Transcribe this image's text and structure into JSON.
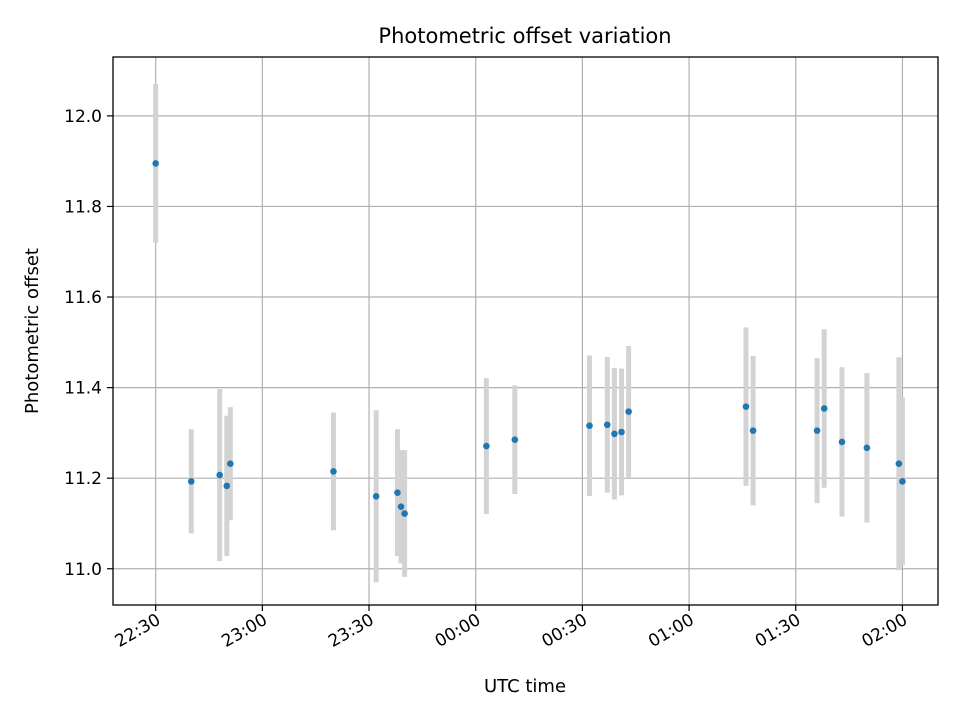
{
  "chart_data": {
    "type": "scatter",
    "title": "Photometric offset variation",
    "xlabel": "UTC time",
    "ylabel": "Photometric offset",
    "x_unit": "time",
    "xlim": [
      "22:18",
      "02:10"
    ],
    "ylim": [
      10.92,
      12.13
    ],
    "grid": true,
    "legend": "none",
    "colors": {
      "points": "#1f77b4",
      "error_bars": "#d3d3d3"
    },
    "x_ticks": [
      {
        "time": "22:30",
        "label": "22:30"
      },
      {
        "time": "23:00",
        "label": "23:00"
      },
      {
        "time": "23:30",
        "label": "23:30"
      },
      {
        "time": "00:00",
        "label": "00:00"
      },
      {
        "time": "00:30",
        "label": "00:30"
      },
      {
        "time": "01:00",
        "label": "01:00"
      },
      {
        "time": "01:30",
        "label": "01:30"
      },
      {
        "time": "02:00",
        "label": "02:00"
      }
    ],
    "y_ticks": [
      {
        "value": 11.0,
        "label": "11.0"
      },
      {
        "value": 11.2,
        "label": "11.2"
      },
      {
        "value": 11.4,
        "label": "11.4"
      },
      {
        "value": 11.6,
        "label": "11.6"
      },
      {
        "value": 11.8,
        "label": "11.8"
      },
      {
        "value": 12.0,
        "label": "12.0"
      }
    ],
    "points": [
      {
        "time": "22:30",
        "y": 11.895,
        "err": 0.175
      },
      {
        "time": "22:40",
        "y": 11.193,
        "err": 0.115
      },
      {
        "time": "22:48",
        "y": 11.207,
        "err": 0.19
      },
      {
        "time": "22:50",
        "y": 11.183,
        "err": 0.155
      },
      {
        "time": "22:51",
        "y": 11.232,
        "err": 0.125
      },
      {
        "time": "23:20",
        "y": 11.215,
        "err": 0.13
      },
      {
        "time": "23:32",
        "y": 11.16,
        "err": 0.19
      },
      {
        "time": "23:38",
        "y": 11.168,
        "err": 0.14
      },
      {
        "time": "23:39",
        "y": 11.137,
        "err": 0.125
      },
      {
        "time": "23:40",
        "y": 11.122,
        "err": 0.14
      },
      {
        "time": "00:03",
        "y": 11.271,
        "err": 0.15
      },
      {
        "time": "00:11",
        "y": 11.285,
        "err": 0.12
      },
      {
        "time": "00:32",
        "y": 11.316,
        "err": 0.155
      },
      {
        "time": "00:37",
        "y": 11.318,
        "err": 0.15
      },
      {
        "time": "00:39",
        "y": 11.298,
        "err": 0.145
      },
      {
        "time": "00:41",
        "y": 11.302,
        "err": 0.14
      },
      {
        "time": "00:43",
        "y": 11.347,
        "err": 0.145
      },
      {
        "time": "01:16",
        "y": 11.358,
        "err": 0.175
      },
      {
        "time": "01:18",
        "y": 11.305,
        "err": 0.165
      },
      {
        "time": "01:36",
        "y": 11.305,
        "err": 0.16
      },
      {
        "time": "01:38",
        "y": 11.354,
        "err": 0.175
      },
      {
        "time": "01:43",
        "y": 11.28,
        "err": 0.165
      },
      {
        "time": "01:50",
        "y": 11.267,
        "err": 0.165
      },
      {
        "time": "01:59",
        "y": 11.232,
        "err": 0.235
      },
      {
        "time": "02:00",
        "y": 11.193,
        "err": 0.185
      }
    ]
  }
}
